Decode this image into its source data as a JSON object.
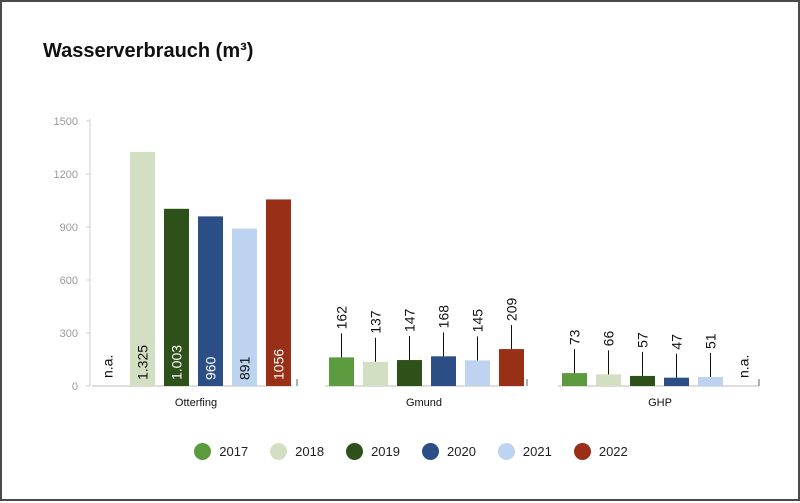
{
  "chart_data": {
    "type": "bar",
    "title": "Wasserverbrauch (m³)",
    "xlabel": "",
    "ylabel": "",
    "ylim": [
      0,
      1500
    ],
    "yticks": [
      0,
      300,
      600,
      900,
      1200,
      1500
    ],
    "ytick_labels": [
      "0",
      "300",
      "600",
      "900",
      "1200",
      "1500"
    ],
    "categories": [
      "Otterfing",
      "Gmund",
      "GHP"
    ],
    "series": [
      {
        "name": "2017",
        "color": "#5b9a3e",
        "values": [
          null,
          162,
          73
        ],
        "labels": [
          "n.a.",
          "162",
          "73"
        ]
      },
      {
        "name": "2018",
        "color": "#d3dfc2",
        "values": [
          1325,
          137,
          66
        ],
        "labels": [
          "1.325",
          "137",
          "66"
        ]
      },
      {
        "name": "2019",
        "color": "#2e5119",
        "values": [
          1003,
          147,
          57
        ],
        "labels": [
          "1.003",
          "147",
          "57"
        ]
      },
      {
        "name": "2020",
        "color": "#2c4e86",
        "values": [
          960,
          168,
          47
        ],
        "labels": [
          "960",
          "168",
          "47"
        ]
      },
      {
        "name": "2021",
        "color": "#bdd3ef",
        "values": [
          891,
          145,
          51
        ],
        "labels": [
          "891",
          "145",
          "51"
        ]
      },
      {
        "name": "2022",
        "color": "#9a2f17",
        "values": [
          1056,
          209,
          null
        ],
        "labels": [
          "1056",
          "209",
          "n.a."
        ]
      }
    ],
    "legend_position": "bottom",
    "grid": false
  }
}
